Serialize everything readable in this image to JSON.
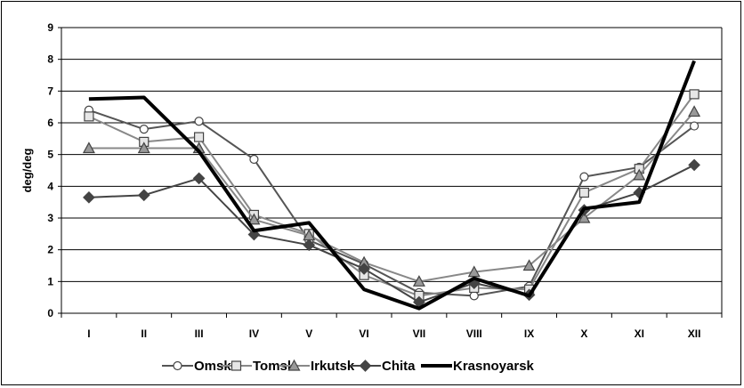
{
  "chart_data": {
    "type": "line",
    "title": "",
    "xlabel": "",
    "ylabel": "deg/deg",
    "categories": [
      "I",
      "II",
      "III",
      "IV",
      "V",
      "VI",
      "VII",
      "VIII",
      "IX",
      "X",
      "XI",
      "XII"
    ],
    "ylim": [
      0,
      9
    ],
    "yticks": [
      "0",
      "1",
      "2",
      "3",
      "4",
      "5",
      "6",
      "7",
      "8",
      "9"
    ],
    "grid": "horizontal",
    "legend_position": "bottom",
    "series": [
      {
        "name": "Omsk",
        "marker": "circle",
        "marker_fill": "#ffffff",
        "line_color": "#555555",
        "values": [
          6.4,
          5.8,
          6.05,
          4.85,
          2.3,
          1.55,
          0.65,
          0.55,
          0.85,
          4.3,
          4.6,
          5.9
        ]
      },
      {
        "name": "Tomsk",
        "marker": "square",
        "marker_fill": "#e6e6e6",
        "line_color": "#888888",
        "values": [
          6.2,
          5.4,
          5.55,
          3.1,
          2.5,
          1.2,
          0.55,
          0.8,
          0.75,
          3.8,
          4.55,
          6.9
        ]
      },
      {
        "name": "Irkutsk",
        "marker": "triangle",
        "marker_fill": "#999999",
        "line_color": "#888888",
        "values": [
          5.2,
          5.2,
          5.2,
          2.95,
          2.45,
          1.6,
          1.0,
          1.3,
          1.5,
          3.0,
          4.35,
          6.35
        ]
      },
      {
        "name": "Chita",
        "marker": "diamond",
        "marker_fill": "#444444",
        "line_color": "#444444",
        "values": [
          3.65,
          3.72,
          4.25,
          2.48,
          2.15,
          1.4,
          0.35,
          0.95,
          0.58,
          3.25,
          3.8,
          4.67
        ]
      },
      {
        "name": "Krasnoyarsk",
        "marker": "none",
        "marker_fill": "#000000",
        "line_color": "#000000",
        "values": [
          6.75,
          6.8,
          5.1,
          2.6,
          2.85,
          0.75,
          0.15,
          1.1,
          0.55,
          3.3,
          3.5,
          7.95
        ]
      }
    ]
  }
}
